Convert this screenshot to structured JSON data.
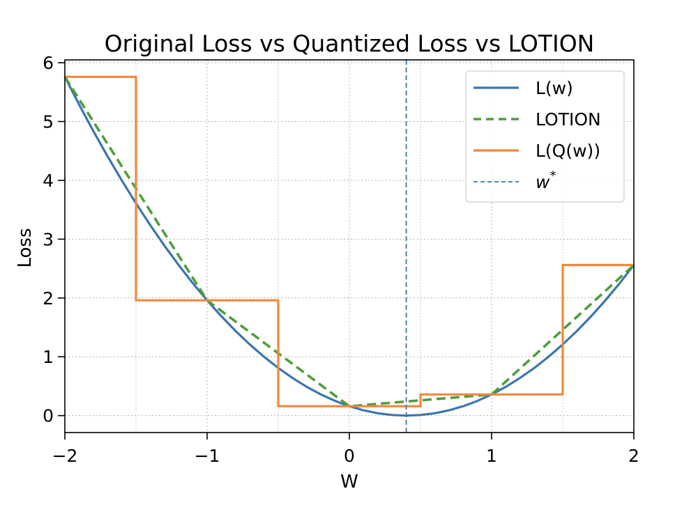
{
  "chart_data": {
    "type": "line",
    "title": "Original Loss vs Quantized Loss vs LOTION",
    "xlabel": "W",
    "ylabel": "Loss",
    "xlim": [
      -2,
      2
    ],
    "ylim": [
      -0.288,
      6.048
    ],
    "xticks": [
      -2,
      -1,
      0,
      1,
      2
    ],
    "xtick_labels": [
      "−2",
      "−1",
      "0",
      "1",
      "2"
    ],
    "yticks": [
      0,
      1,
      2,
      3,
      4,
      5,
      6
    ],
    "ytick_labels": [
      "0",
      "1",
      "2",
      "3",
      "4",
      "5",
      "6"
    ],
    "grid": true,
    "quantization_boundaries": [
      -1.5,
      -0.5,
      0.5,
      1.5
    ],
    "legend_position": "top-right",
    "series": [
      {
        "name": "L(w)",
        "color": "#3a75b0",
        "style": "solid",
        "x": [
          -2,
          -1.9,
          -1.8,
          -1.7,
          -1.6,
          -1.5,
          -1.4,
          -1.3,
          -1.2,
          -1.1,
          -1,
          -0.9,
          -0.8,
          -0.7,
          -0.6,
          -0.5,
          -0.4,
          -0.3,
          -0.2,
          -0.1,
          0,
          0.1,
          0.2,
          0.3,
          0.4,
          0.5,
          0.6,
          0.7,
          0.8,
          0.9,
          1,
          1.1,
          1.2,
          1.3,
          1.4,
          1.5,
          1.6,
          1.7,
          1.8,
          1.9,
          2
        ],
        "y": [
          5.76,
          5.29,
          4.84,
          4.41,
          4.0,
          3.61,
          3.24,
          2.89,
          2.56,
          2.25,
          1.96,
          1.69,
          1.44,
          1.21,
          1.0,
          0.81,
          0.64,
          0.49,
          0.36,
          0.25,
          0.16,
          0.09,
          0.04,
          0.01,
          0,
          0.01,
          0.04,
          0.09,
          0.16,
          0.25,
          0.36,
          0.49,
          0.64,
          0.81,
          1.0,
          1.21,
          1.44,
          1.69,
          1.96,
          2.25,
          2.56
        ]
      },
      {
        "name": "LOTION",
        "color": "#4d9e3a",
        "style": "dashed",
        "x": [
          -2,
          -1,
          0,
          1,
          2
        ],
        "y": [
          5.76,
          1.96,
          0.16,
          0.36,
          2.56
        ]
      },
      {
        "name": "L(Q(w))",
        "color": "#f0883a",
        "style": "solid",
        "x": [
          -2,
          -1.5,
          -1.5,
          -0.5,
          -0.5,
          0.5,
          0.5,
          1.5,
          1.5,
          2
        ],
        "y": [
          5.76,
          5.76,
          1.96,
          1.96,
          0.16,
          0.16,
          0.36,
          0.36,
          2.56,
          2.56
        ]
      },
      {
        "name": "w*",
        "color": "#3a75b0",
        "style": "dashed-thin",
        "x": [
          0.4,
          0.4
        ],
        "y": [
          -0.288,
          6.048
        ]
      }
    ],
    "legend": {
      "entries": [
        {
          "label": "L(w)",
          "series": 0
        },
        {
          "label": "LOTION",
          "series": 1
        },
        {
          "label": "L(Q(w))",
          "series": 2
        },
        {
          "label": "w",
          "sup": "*",
          "series": 3
        }
      ]
    }
  }
}
